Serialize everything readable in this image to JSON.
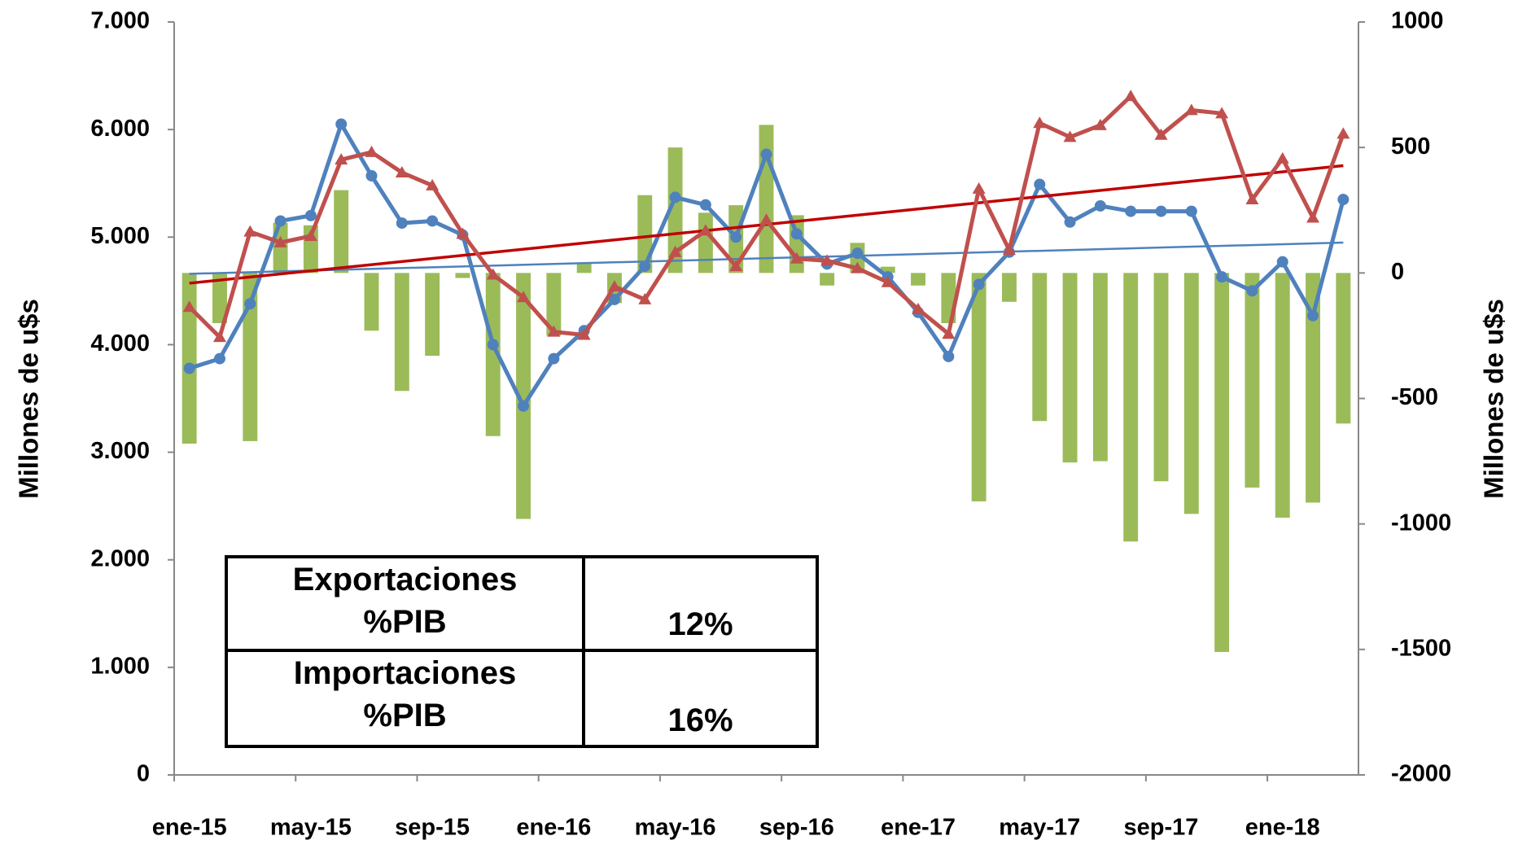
{
  "chart_data": {
    "type": "bar_line",
    "y_label": "Millones de u$s",
    "y2_label": "Millones de u$s",
    "categories": [
      "ene-15",
      null,
      null,
      null,
      "may-15",
      null,
      null,
      null,
      "sep-15",
      null,
      null,
      null,
      "ene-16",
      null,
      null,
      null,
      "may-16",
      null,
      null,
      null,
      "sep-16",
      null,
      null,
      null,
      "ene-17",
      null,
      null,
      null,
      "may-17",
      null,
      null,
      null,
      "sep-17",
      null,
      null,
      null,
      "ene-18",
      null,
      null
    ],
    "series": [
      {
        "type": "bar",
        "axis": "y2",
        "color": "#9bbb59",
        "values": [
          -680,
          -200,
          -670,
          200,
          190,
          330,
          -230,
          -470,
          -330,
          -20,
          -650,
          -980,
          -250,
          40,
          -120,
          310,
          500,
          240,
          270,
          590,
          230,
          -50,
          120,
          25,
          -50,
          -200,
          -910,
          -115,
          -590,
          -755,
          -750,
          -1070,
          -830,
          -960,
          -1510,
          -855,
          -975,
          -915,
          -600
        ]
      },
      {
        "type": "line",
        "marker": "circle",
        "color": "#4f81bd",
        "trendline": true,
        "trend_color": "#4f81bd",
        "values": [
          3780,
          3870,
          4380,
          5150,
          5200,
          6050,
          5570,
          5130,
          5150,
          5020,
          4000,
          3430,
          3870,
          4130,
          4420,
          4730,
          5370,
          5300,
          5000,
          5770,
          5030,
          4750,
          4850,
          4630,
          4300,
          3890,
          4560,
          4860,
          5490,
          5140,
          5290,
          5240,
          5240,
          5240,
          4630,
          4500,
          4770,
          4270,
          5350
        ]
      },
      {
        "type": "line",
        "marker": "triangle",
        "color": "#c0504d",
        "trendline": true,
        "trend_color": "#c00000",
        "values": [
          4350,
          4070,
          5050,
          4950,
          5010,
          5720,
          5790,
          5600,
          5480,
          5030,
          4650,
          4440,
          4120,
          4090,
          4540,
          4420,
          4860,
          5060,
          4730,
          5160,
          4800,
          4780,
          4710,
          4580,
          4330,
          4100,
          5450,
          4880,
          6060,
          5930,
          6040,
          6310,
          5950,
          6180,
          6150,
          5350,
          5730,
          5180,
          5960
        ]
      }
    ],
    "ylim": [
      0,
      7000
    ],
    "yticks": [
      0,
      {
        "value": 1000,
        "label": "1.000"
      },
      {
        "value": 2000,
        "label": "2.000"
      },
      {
        "value": 3000,
        "label": "3.000"
      },
      {
        "value": 4000,
        "label": "4.000"
      },
      {
        "value": 5000,
        "label": "5.000"
      },
      {
        "value": 6000,
        "label": "6.000"
      },
      {
        "value": 7000,
        "label": "7.000"
      }
    ],
    "y2lim": [
      -2000,
      1000
    ],
    "y2ticks": [
      -2000,
      -1500,
      -1000,
      -500,
      0,
      500,
      1000
    ],
    "table": {
      "rows": [
        [
          "Exportaciones %PIB",
          "12%"
        ],
        [
          "Importaciones %PIB",
          "16%"
        ]
      ]
    }
  }
}
